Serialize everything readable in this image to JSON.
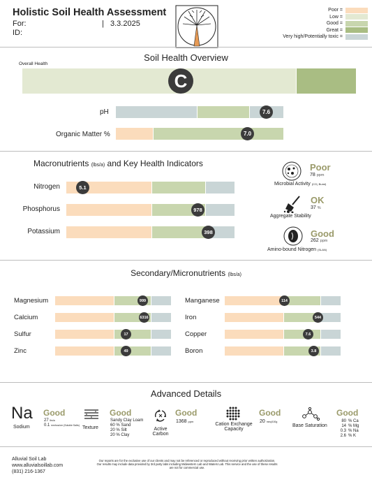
{
  "header": {
    "title": "Holistic Soil Health Assessment",
    "for_label": "For:",
    "id_label": "ID:",
    "separator": "|",
    "date": "3.3.2025"
  },
  "legend": [
    {
      "label": "Poor =",
      "color": "#fbdcbc"
    },
    {
      "label": "Low =",
      "color": "#e3e9d2"
    },
    {
      "label": "Good =",
      "color": "#c8d6ae"
    },
    {
      "label": "Great =",
      "color": "#a9bd83"
    },
    {
      "label": "Very high/Potentially toxic =",
      "color": "#c9d5d6"
    }
  ],
  "overview": {
    "title": "Soil Health Overview",
    "overall_label": "Overall Health",
    "overall_grade": "C",
    "ph_label": "pH",
    "ph_value": "7.6",
    "om_label": "Organic Matter %",
    "om_value": "7.0"
  },
  "macro": {
    "title": "Macronutrients",
    "unit": "(lbs/a)",
    "title_rest": "and Key Health Indicators",
    "items": [
      {
        "label": "Nitrogen",
        "value": "5.1"
      },
      {
        "label": "Phosphorus",
        "value": "978"
      },
      {
        "label": "Potassium",
        "value": "398"
      }
    ]
  },
  "indicators": {
    "microbial": {
      "rating": "Poor",
      "value": "78",
      "unit": "ppm",
      "label": "Microbial Activity",
      "note": "(CO₂ Burst)"
    },
    "aggregate": {
      "rating": "OK",
      "value": "37",
      "unit": "%",
      "label": "Aggregate Stability"
    },
    "amino": {
      "rating": "Good",
      "value": "262",
      "unit": "ppm",
      "label": "Amino-bound Nitrogen",
      "note": "(SLAN)"
    }
  },
  "secondary": {
    "title": "Secondary/Micronutrients",
    "unit": "(lbs/a)",
    "left": [
      {
        "label": "Magnesium",
        "value": "999"
      },
      {
        "label": "Calcium",
        "value": "6316"
      },
      {
        "label": "Sulfur",
        "value": "17"
      },
      {
        "label": "Zinc",
        "value": "49"
      }
    ],
    "right": [
      {
        "label": "Manganese",
        "value": "114"
      },
      {
        "label": "Iron",
        "value": "544"
      },
      {
        "label": "Copper",
        "value": "7.6"
      },
      {
        "label": "Boron",
        "value": "3.8"
      }
    ]
  },
  "advanced": {
    "title": "Advanced Details",
    "sodium": {
      "symbol": "Na",
      "name": "Sodium",
      "rating": "Good",
      "v1": "27",
      "u1": "lbs/a",
      "v2": "0.1",
      "u2": "mmhos/cm (Soluble Salts)"
    },
    "texture": {
      "name": "Texture",
      "rating": "Good",
      "lines": [
        "Sandy Clay Loam",
        "60 % Sand",
        "20 % Silt",
        "20 % Clay"
      ]
    },
    "carbon": {
      "name1": "Active",
      "name2": "Carbon",
      "rating": "Good",
      "value": "1368",
      "unit": "ppm"
    },
    "cec": {
      "name1": "Cation Exchange",
      "name2": "Capacity",
      "rating": "Good",
      "value": "20",
      "unit": "meq/100g"
    },
    "base": {
      "name": "Base Saturation",
      "rating": "Good",
      "lines": [
        [
          "80",
          "% Ca"
        ],
        [
          "14",
          "% Mg"
        ],
        [
          "0.3",
          "% Na"
        ],
        [
          "2.6",
          "% K"
        ]
      ]
    }
  },
  "footer": {
    "lab": "Alluvial Soil Lab",
    "site": "www.alluvialsoillab.com",
    "phone": "(831) 216-1367",
    "disclaimer1": "Our reports are for the exclusive use of our clients and may not be referenced or reproduced without receiving prior written authorization.",
    "disclaimer2": "Our results may include data provided by 3rd party labs including Midwestern Lab and Waters Lab. This service and the use of these results",
    "disclaimer3": "are not for commercial use."
  }
}
